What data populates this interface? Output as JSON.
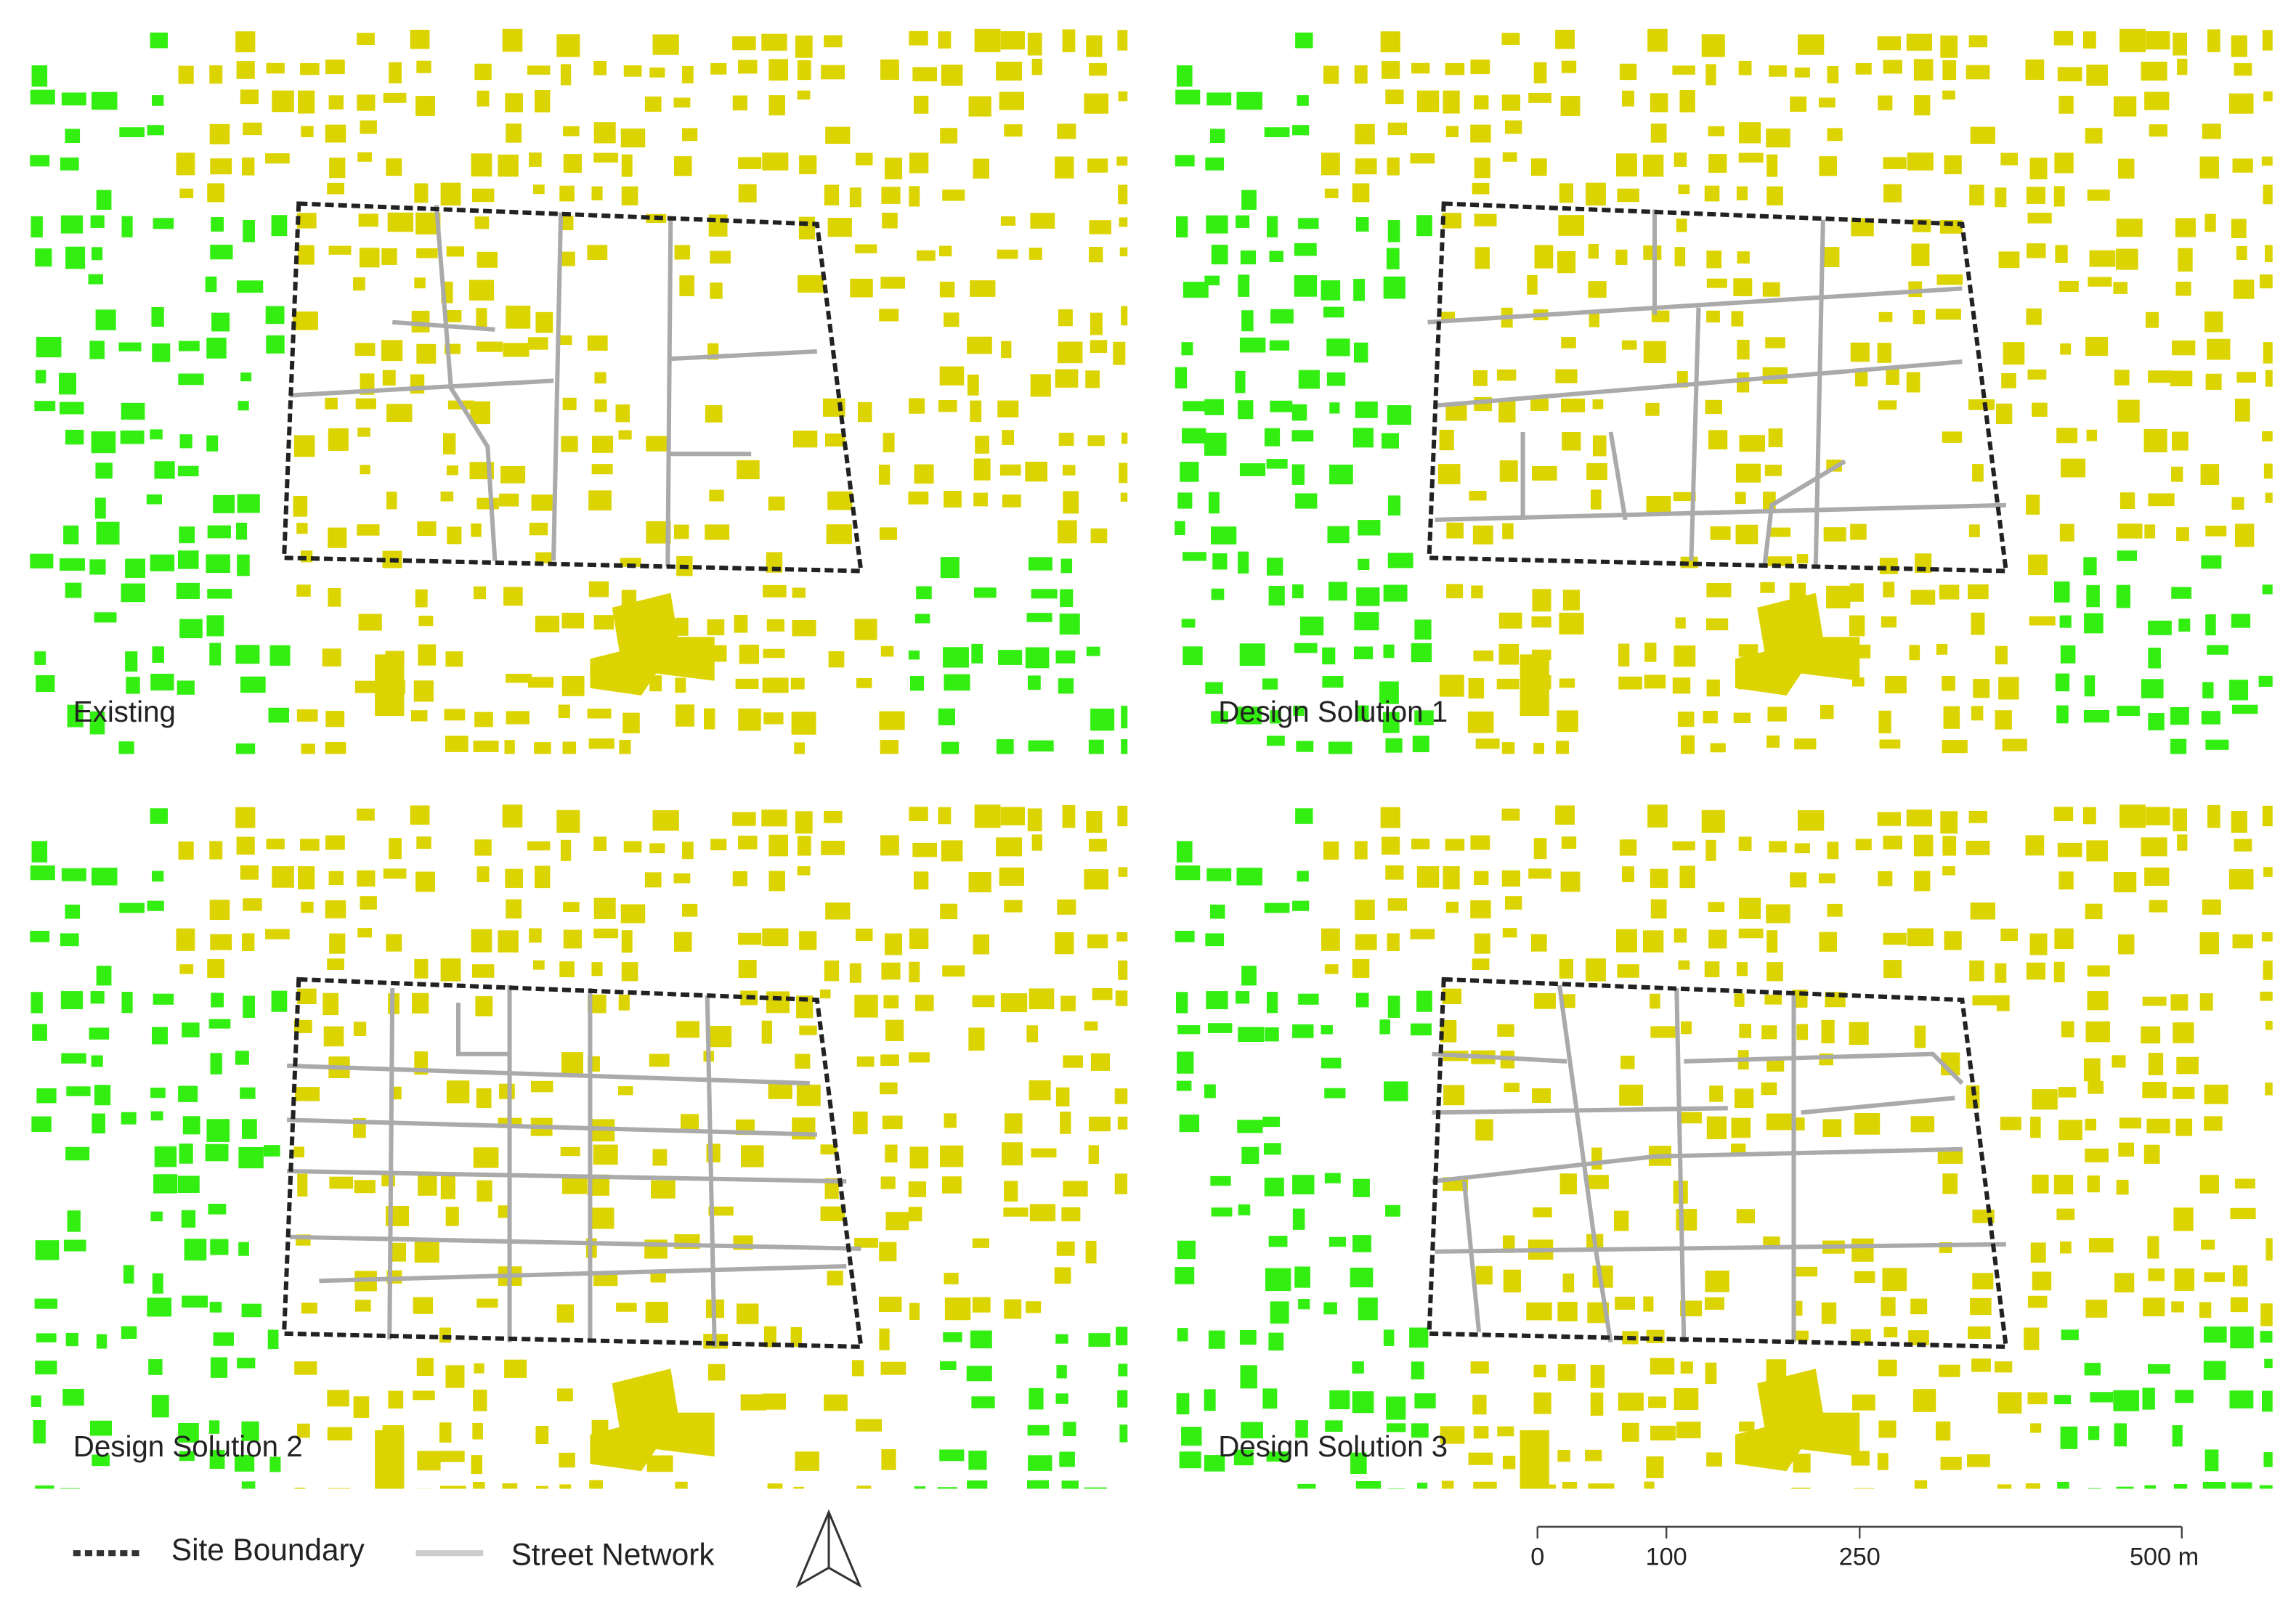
{
  "panels": [
    {
      "label": "Existing"
    },
    {
      "label": "Design Solution 1"
    },
    {
      "label": "Design Solution 2"
    },
    {
      "label": "Design Solution 3"
    }
  ],
  "legend": {
    "site_boundary": "Site Boundary",
    "street_network": "Street Network"
  },
  "scale_bar": {
    "ticks": [
      0,
      100,
      250,
      {
        "value": 500,
        "label": "500 m"
      }
    ]
  }
}
